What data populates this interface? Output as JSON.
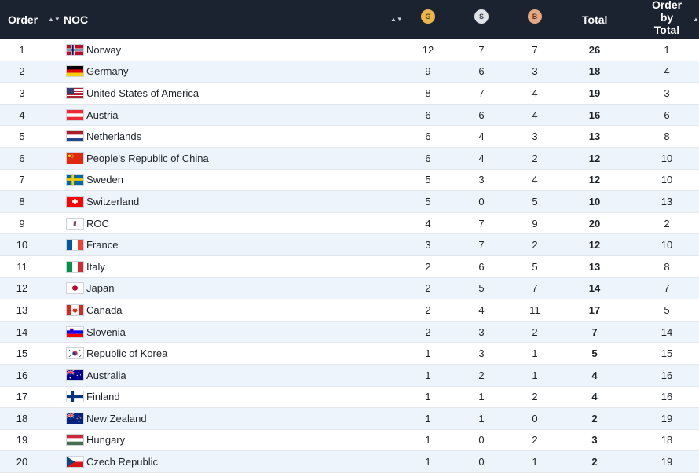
{
  "header": {
    "order": "Order",
    "noc": "NOC",
    "gold": "G",
    "silver": "S",
    "bronze": "B",
    "total": "Total",
    "order_by_total_line1": "Order",
    "order_by_total_line2": "by",
    "order_by_total_line3": "Total",
    "sort_glyph": "▲▼"
  },
  "colors": {
    "header_bg": "#1c2330",
    "gold": "#e9b54c",
    "silver": "#dfe3e8",
    "bronze": "#e3a884",
    "row_alt": "#eef4fb"
  },
  "rows": [
    {
      "order": "1",
      "flag": "norway-flag",
      "noc": "Norway",
      "gold": "12",
      "silver": "7",
      "bronze": "7",
      "total": "26",
      "order_by_total": "1"
    },
    {
      "order": "2",
      "flag": "germany-flag",
      "noc": "Germany",
      "gold": "9",
      "silver": "6",
      "bronze": "3",
      "total": "18",
      "order_by_total": "4"
    },
    {
      "order": "3",
      "flag": "usa-flag",
      "noc": "United States of America",
      "gold": "8",
      "silver": "7",
      "bronze": "4",
      "total": "19",
      "order_by_total": "3"
    },
    {
      "order": "4",
      "flag": "austria-flag",
      "noc": "Austria",
      "gold": "6",
      "silver": "6",
      "bronze": "4",
      "total": "16",
      "order_by_total": "6"
    },
    {
      "order": "5",
      "flag": "netherlands-flag",
      "noc": "Netherlands",
      "gold": "6",
      "silver": "4",
      "bronze": "3",
      "total": "13",
      "order_by_total": "8"
    },
    {
      "order": "6",
      "flag": "china-flag",
      "noc": "People's Republic of China",
      "gold": "6",
      "silver": "4",
      "bronze": "2",
      "total": "12",
      "order_by_total": "10"
    },
    {
      "order": "7",
      "flag": "sweden-flag",
      "noc": "Sweden",
      "gold": "5",
      "silver": "3",
      "bronze": "4",
      "total": "12",
      "order_by_total": "10"
    },
    {
      "order": "8",
      "flag": "switzerland-flag",
      "noc": "Switzerland",
      "gold": "5",
      "silver": "0",
      "bronze": "5",
      "total": "10",
      "order_by_total": "13"
    },
    {
      "order": "9",
      "flag": "roc-flag",
      "noc": "ROC",
      "gold": "4",
      "silver": "7",
      "bronze": "9",
      "total": "20",
      "order_by_total": "2"
    },
    {
      "order": "10",
      "flag": "france-flag",
      "noc": "France",
      "gold": "3",
      "silver": "7",
      "bronze": "2",
      "total": "12",
      "order_by_total": "10"
    },
    {
      "order": "11",
      "flag": "italy-flag",
      "noc": "Italy",
      "gold": "2",
      "silver": "6",
      "bronze": "5",
      "total": "13",
      "order_by_total": "8"
    },
    {
      "order": "12",
      "flag": "japan-flag",
      "noc": "Japan",
      "gold": "2",
      "silver": "5",
      "bronze": "7",
      "total": "14",
      "order_by_total": "7"
    },
    {
      "order": "13",
      "flag": "canada-flag",
      "noc": "Canada",
      "gold": "2",
      "silver": "4",
      "bronze": "11",
      "total": "17",
      "order_by_total": "5"
    },
    {
      "order": "14",
      "flag": "slovenia-flag",
      "noc": "Slovenia",
      "gold": "2",
      "silver": "3",
      "bronze": "2",
      "total": "7",
      "order_by_total": "14"
    },
    {
      "order": "15",
      "flag": "korea-flag",
      "noc": "Republic of Korea",
      "gold": "1",
      "silver": "3",
      "bronze": "1",
      "total": "5",
      "order_by_total": "15"
    },
    {
      "order": "16",
      "flag": "australia-flag",
      "noc": "Australia",
      "gold": "1",
      "silver": "2",
      "bronze": "1",
      "total": "4",
      "order_by_total": "16"
    },
    {
      "order": "17",
      "flag": "finland-flag",
      "noc": "Finland",
      "gold": "1",
      "silver": "1",
      "bronze": "2",
      "total": "4",
      "order_by_total": "16"
    },
    {
      "order": "18",
      "flag": "new-zealand-flag",
      "noc": "New Zealand",
      "gold": "1",
      "silver": "1",
      "bronze": "0",
      "total": "2",
      "order_by_total": "19"
    },
    {
      "order": "19",
      "flag": "hungary-flag",
      "noc": "Hungary",
      "gold": "1",
      "silver": "0",
      "bronze": "2",
      "total": "3",
      "order_by_total": "18"
    },
    {
      "order": "20",
      "flag": "czech-flag",
      "noc": "Czech Republic",
      "gold": "1",
      "silver": "0",
      "bronze": "1",
      "total": "2",
      "order_by_total": "19"
    }
  ]
}
